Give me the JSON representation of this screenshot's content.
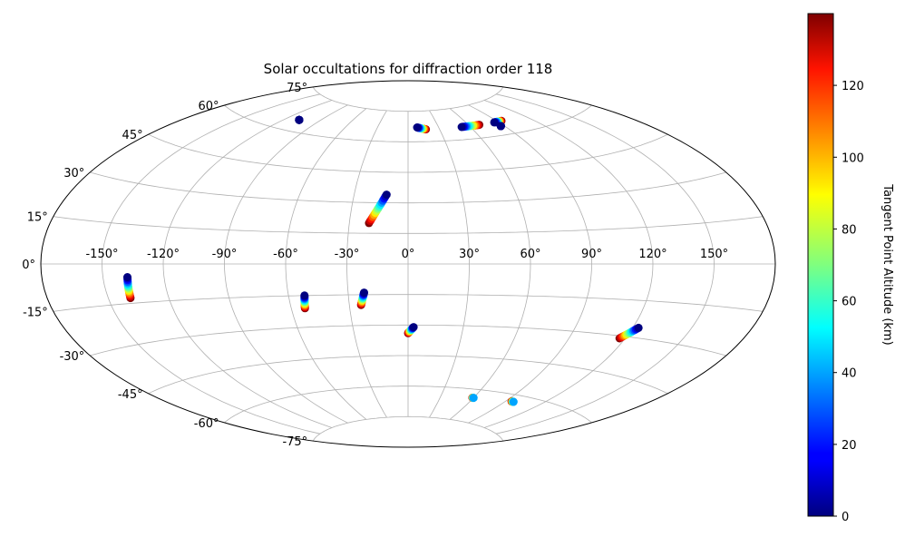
{
  "chart_data": {
    "type": "scatter",
    "projection": "aitoff",
    "title": "Solar occultations for diffraction order 118",
    "grid": true,
    "lon_ticks": [
      "-150°",
      "-120°",
      "-90°",
      "-60°",
      "-30°",
      "0°",
      "30°",
      "60°",
      "90°",
      "120°",
      "150°"
    ],
    "lat_ticks": [
      "75°",
      "60°",
      "45°",
      "30°",
      "15°",
      "0°",
      "-15°",
      "-30°",
      "-45°",
      "-60°",
      "-75°"
    ],
    "colorbar": {
      "label": "Tangent Point Altitude (km)",
      "colormap": "jet",
      "range": [
        0,
        140
      ],
      "ticks": [
        "0",
        "20",
        "40",
        "60",
        "80",
        "100",
        "120"
      ],
      "tick_values": [
        0,
        20,
        40,
        60,
        80,
        100,
        120
      ]
    },
    "tracks": [
      {
        "lon_start": -138,
        "lat_start": -5,
        "lon_end": -139,
        "lat_end": -13,
        "alt_start": 0,
        "alt_end": 140
      },
      {
        "lon_start": -52,
        "lat_start": -15,
        "lon_end": -53,
        "lat_end": -21,
        "alt_start": 0,
        "alt_end": 140
      },
      {
        "lon_start": -22,
        "lat_start": -14,
        "lon_end": -24,
        "lat_end": -20,
        "alt_start": 0,
        "alt_end": 140
      },
      {
        "lon_start": 3,
        "lat_start": -31,
        "lon_end": 0,
        "lat_end": -34,
        "alt_start": 0,
        "alt_end": 140
      },
      {
        "lon_start": -12,
        "lat_start": 34,
        "lon_end": -20,
        "lat_end": 20,
        "alt_start": 0,
        "alt_end": 140
      },
      {
        "lon_start": 123,
        "lat_start": -26,
        "lon_end": 117,
        "lat_end": -31,
        "alt_start": 0,
        "alt_end": 140
      },
      {
        "lon_start": 52,
        "lat_start": 66,
        "lon_end": 70,
        "lat_end": 66,
        "alt_start": 0,
        "alt_end": 140
      },
      {
        "lon_start": 9,
        "lat_start": 67,
        "lon_end": 17,
        "lat_end": 66,
        "alt_start": 0,
        "alt_end": 140
      },
      {
        "lon_start": 86,
        "lat_start": 66,
        "lon_end": 94,
        "lat_end": 66,
        "alt_start": 0,
        "alt_end": 140
      },
      {
        "lon_start": 87,
        "lat_start": 64,
        "lon_end": 87,
        "lat_end": 64,
        "alt_start": 0,
        "alt_end": 0
      },
      {
        "lon_start": -108,
        "lat_start": 65,
        "lon_end": -108,
        "lat_end": 65,
        "alt_start": 0,
        "alt_end": 0
      },
      {
        "lon_start": 60,
        "lat_start": -64,
        "lon_end": 59,
        "lat_end": -64,
        "alt_start": 40,
        "alt_end": 140
      },
      {
        "lon_start": 97,
        "lat_start": -63,
        "lon_end": 95,
        "lat_end": -63,
        "alt_start": 40,
        "alt_end": 140
      }
    ]
  }
}
